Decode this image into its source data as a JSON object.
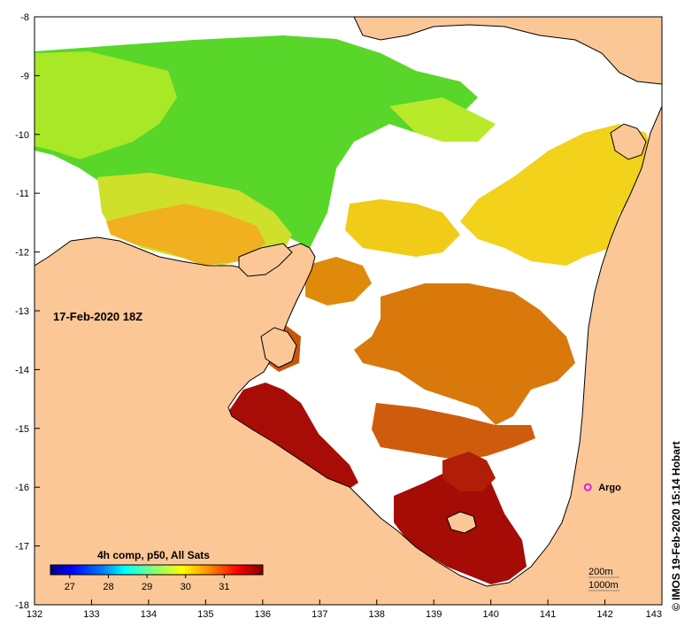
{
  "map": {
    "date_label": "17-Feb-2020 18Z",
    "credit": "© IMOS 19-Feb-2020 15:14 Hobart",
    "argo_label": "Argo",
    "depth_labels": [
      "200m",
      "1000m"
    ],
    "colors": {
      "land": "#fbc797",
      "cloud": "#ffffff",
      "coast": "#000000",
      "argo": "#dd22dd"
    }
  },
  "chart_data": {
    "type": "heatmap",
    "title": "4h comp, p50, All Sats",
    "x_ticks": [
      "132",
      "133",
      "134",
      "135",
      "136",
      "137",
      "138",
      "139",
      "140",
      "141",
      "142",
      "143"
    ],
    "y_ticks": [
      "-8",
      "-9",
      "-10",
      "-11",
      "-12",
      "-13",
      "-14",
      "-15",
      "-16",
      "-17",
      "-18"
    ],
    "xlim": [
      132,
      143
    ],
    "ylim": [
      -18,
      -8
    ],
    "colorbar": {
      "ticks": [
        "27",
        "28",
        "29",
        "30",
        "31"
      ],
      "range": [
        26.5,
        32
      ],
      "stops": [
        "#00007f",
        "#0000ff",
        "#007fff",
        "#00ffff",
        "#7fff7f",
        "#ffff00",
        "#ff7f00",
        "#ff0000",
        "#7f0000"
      ]
    },
    "argo_float": {
      "lon": 141.7,
      "lat": -16.0
    }
  }
}
